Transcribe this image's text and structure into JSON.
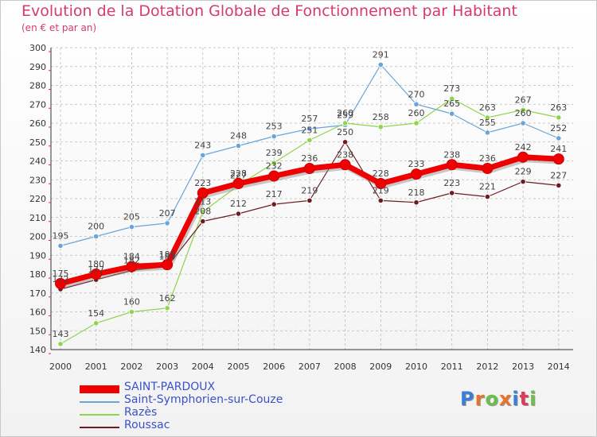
{
  "title": "Evolution de la Dotation Globale de Fonctionnement par Habitant",
  "subtitle": "(en € et par an)",
  "logo_text": "Proxiti",
  "colors": {
    "title": "#d63a6e",
    "grid": "#bbbbbb",
    "legend_text": "#3a52c9"
  },
  "chart_data": {
    "type": "line",
    "title": "Evolution de la Dotation Globale de Fonctionnement par Habitant",
    "subtitle": "(en € et par an)",
    "xlabel": "",
    "ylabel": "",
    "ylim": [
      140,
      300
    ],
    "yticks": [
      140,
      150,
      160,
      170,
      180,
      190,
      200,
      210,
      220,
      230,
      240,
      250,
      260,
      270,
      280,
      290,
      300
    ],
    "grid": true,
    "legend_position": "bottom-left",
    "categories": [
      "2000",
      "2001",
      "2002",
      "2003",
      "2004",
      "2005",
      "2006",
      "2007",
      "2008",
      "2009",
      "2010",
      "2011",
      "2012",
      "2013",
      "2014"
    ],
    "series": [
      {
        "name": "Saint-Symphorien-sur-Couze",
        "color": "#6aa4d8",
        "width": 1.2,
        "values": [
          195,
          200,
          205,
          207,
          243,
          248,
          253,
          257,
          259,
          291,
          270,
          265,
          255,
          260,
          252
        ]
      },
      {
        "name": "Razès",
        "color": "#8fd44d",
        "width": 1.2,
        "values": [
          143,
          154,
          160,
          162,
          213,
          227,
          239,
          251,
          260,
          258,
          260,
          273,
          263,
          267,
          263
        ]
      },
      {
        "name": "Roussac",
        "color": "#6e1c22",
        "width": 1.2,
        "values": [
          172,
          177,
          182,
          184,
          208,
          212,
          217,
          219,
          250,
          219,
          218,
          223,
          221,
          229,
          227
        ]
      },
      {
        "name": "SAINT-PARDOUX",
        "color": "#ee0000",
        "width": 7,
        "values": [
          175,
          180,
          184,
          185,
          223,
          228,
          232,
          236,
          238,
          228,
          233,
          238,
          236,
          242,
          241
        ]
      }
    ]
  }
}
